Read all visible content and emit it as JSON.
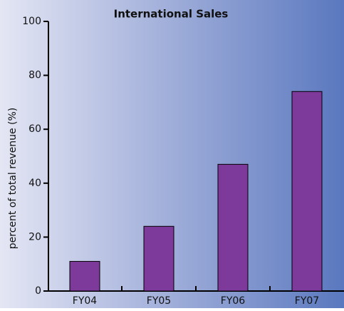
{
  "chart_data": {
    "type": "bar",
    "title": "International Sales",
    "y_label": "percent of total revenue (%)",
    "categories": [
      "FY04",
      "FY05",
      "FY06",
      "FY07"
    ],
    "values": [
      11,
      24,
      47,
      74
    ],
    "color": "#7d3a9b",
    "ylim": [
      0,
      100
    ],
    "yticks": [
      0,
      20,
      40,
      60,
      80,
      100
    ],
    "grid": false
  }
}
